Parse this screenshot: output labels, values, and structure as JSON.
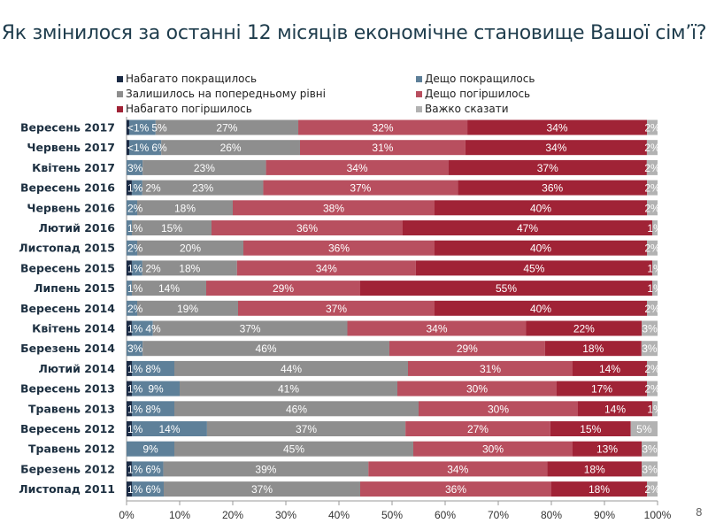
{
  "title": "Як змінилося за останні 12 місяців економічне становище Вашої сім’ї?",
  "page_number": "8",
  "chart_data": {
    "type": "bar",
    "orientation": "horizontal",
    "stacked": true,
    "percent_stacked": true,
    "title": "Як змінилося за останні 12 місяців економічне становище Вашої сім’ї?",
    "categories": [
      "Вересень 2017",
      "Червень 2017",
      "Квітень 2017",
      "Вересень 2016",
      "Червень 2016",
      "Лютий 2016",
      "Листопад 2015",
      "Вересень 2015",
      "Липень 2015",
      "Вересень 2014",
      "Квітень 2014",
      "Березень 2014",
      "Лютий 2014",
      "Вересень 2013",
      "Травень 2013",
      "Вересень 2012",
      "Травень 2012",
      "Березень 2012",
      "Листопад 2011"
    ],
    "series": [
      {
        "name": "Набагато покращилось",
        "color": "#1b2b45",
        "values": [
          0.5,
          0.5,
          0,
          1,
          0,
          0,
          0,
          1,
          0,
          0,
          1,
          0,
          1,
          1,
          1,
          1,
          0,
          1,
          1
        ],
        "labels": [
          "<1%",
          "<1%",
          "",
          "1%",
          "",
          "",
          "",
          "1%",
          "",
          "",
          "1%",
          "",
          "1%",
          "1%",
          "1%",
          "1%",
          "",
          "1%",
          "1%"
        ]
      },
      {
        "name": "Дещо покращилось",
        "color": "#5e8099",
        "values": [
          5,
          6,
          3,
          2,
          2,
          1,
          2,
          2,
          1,
          2,
          4,
          3,
          8,
          9,
          8,
          14,
          9,
          6,
          6
        ]
      },
      {
        "name": "Залишилось на попередньому рівні",
        "color": "#8e8e8e",
        "values": [
          27,
          26,
          23,
          23,
          18,
          15,
          20,
          18,
          14,
          19,
          37,
          46,
          44,
          41,
          46,
          37,
          45,
          39,
          37
        ]
      },
      {
        "name": "Дещо погіршилось",
        "color": "#b84f5f",
        "values": [
          32,
          31,
          34,
          37,
          38,
          36,
          36,
          34,
          29,
          37,
          34,
          29,
          31,
          30,
          30,
          27,
          30,
          34,
          36
        ]
      },
      {
        "name": "Набагато погіршилось",
        "color": "#a02336",
        "values": [
          34,
          34,
          37,
          36,
          40,
          47,
          40,
          45,
          55,
          40,
          22,
          18,
          14,
          17,
          14,
          15,
          13,
          18,
          18
        ]
      },
      {
        "name": "Важко сказати",
        "color": "#b2b2b2",
        "values": [
          2,
          2,
          2,
          2,
          2,
          1,
          2,
          1,
          1,
          2,
          3,
          3,
          2,
          2,
          1,
          5,
          3,
          3,
          2
        ]
      }
    ],
    "xlim": [
      0,
      100
    ],
    "x_ticks": [
      "0%",
      "10%",
      "20%",
      "30%",
      "40%",
      "50%",
      "60%",
      "70%",
      "80%",
      "90%",
      "100%"
    ],
    "legend_position": "top",
    "grid": false
  }
}
